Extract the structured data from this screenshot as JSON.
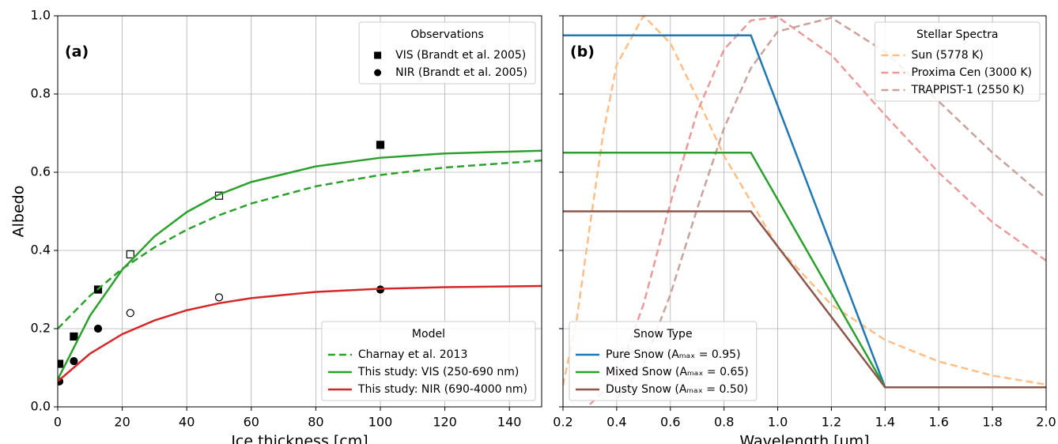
{
  "chart_data": [
    {
      "type": "line",
      "annotation": "(a)",
      "xlabel": "Ice thickness [cm]",
      "ylabel": "Albedo",
      "xlim": [
        0,
        150
      ],
      "ylim": [
        0,
        1
      ],
      "xticks": [
        0,
        20,
        40,
        60,
        80,
        100,
        120,
        140
      ],
      "yticks": [
        {
          "value": 0,
          "label": "0.0"
        },
        0.2,
        0.4,
        0.6,
        0.8,
        {
          "value": 1,
          "label": "1.0"
        }
      ],
      "grid": true,
      "legends": [
        {
          "title": "Observations",
          "loc": "upper right",
          "series": [
            {
              "name": "VIS (Brandt et al. 2005)",
              "type": "scatter",
              "marker": "square",
              "color": "#000000",
              "x": [
                0.5,
                5,
                12.5,
                22.5,
                50,
                100
              ],
              "values": [
                0.11,
                0.18,
                0.3,
                0.39,
                0.54,
                0.67
              ],
              "filled": [
                true,
                true,
                true,
                false,
                false,
                true
              ]
            },
            {
              "name": "NIR (Brandt et al. 2005)",
              "type": "scatter",
              "marker": "circle",
              "color": "#000000",
              "x": [
                0.5,
                5,
                12.5,
                22.5,
                50,
                100
              ],
              "values": [
                0.065,
                0.117,
                0.2,
                0.24,
                0.28,
                0.3
              ],
              "filled": [
                true,
                true,
                true,
                false,
                false,
                true
              ]
            }
          ]
        },
        {
          "title": "Model",
          "loc": "lower right",
          "series": [
            {
              "name": "Charnay et al. 2013",
              "type": "line",
              "linestyle": "dashed",
              "color": "#2ca02c",
              "x": [
                0,
                10,
                20,
                30,
                40,
                50,
                60,
                80,
                100,
                120,
                150
              ],
              "values": [
                0.2,
                0.284,
                0.353,
                0.408,
                0.453,
                0.49,
                0.52,
                0.564,
                0.593,
                0.612,
                0.63
              ]
            },
            {
              "name": "This study: VIS (250-690 nm)",
              "type": "line",
              "linestyle": "solid",
              "color": "#2ca02c",
              "x": [
                0,
                10,
                20,
                30,
                40,
                50,
                60,
                80,
                100,
                120,
                150
              ],
              "values": [
                0.07,
                0.233,
                0.351,
                0.436,
                0.498,
                0.543,
                0.575,
                0.615,
                0.637,
                0.648,
                0.655
              ]
            },
            {
              "name": "This study: NIR (690-4000 nm)",
              "type": "line",
              "linestyle": "solid",
              "color": "#d62728",
              "x": [
                0,
                10,
                20,
                30,
                40,
                50,
                60,
                80,
                100,
                120,
                150
              ],
              "values": [
                0.065,
                0.136,
                0.186,
                0.221,
                0.247,
                0.265,
                0.278,
                0.294,
                0.302,
                0.306,
                0.309
              ]
            }
          ]
        }
      ]
    },
    {
      "type": "line",
      "annotation": "(b)",
      "xlabel": "Wavelength [μm]",
      "sharey": true,
      "xlim": [
        0.2,
        2.0
      ],
      "ylim": [
        0,
        1
      ],
      "xticks": [
        0.2,
        0.4,
        0.6,
        0.8,
        {
          "value": 1,
          "label": "1.0"
        },
        1.2,
        1.4,
        1.6,
        1.8,
        {
          "value": 2,
          "label": "2.0"
        }
      ],
      "grid": true,
      "legends": [
        {
          "title": "Stellar Spectra",
          "loc": "upper right",
          "series": [
            {
              "name": "Sun (5778 K)",
              "type": "line",
              "linestyle": "dashed",
              "color": "#ffbe86",
              "x": [
                0.2,
                0.25,
                0.3,
                0.35,
                0.4,
                0.5,
                0.6,
                0.7,
                0.8,
                1.0,
                1.2,
                1.4,
                1.6,
                1.8,
                2.0
              ],
              "values": [
                0.055,
                0.218,
                0.462,
                0.7,
                0.875,
                1.0,
                0.93,
                0.79,
                0.642,
                0.409,
                0.261,
                0.171,
                0.116,
                0.08,
                0.057
              ]
            },
            {
              "name": "Proxima Cen (3000 K)",
              "type": "line",
              "linestyle": "dashed",
              "color": "#eb9a9a",
              "x": [
                0.3,
                0.4,
                0.5,
                0.6,
                0.7,
                0.8,
                0.9,
                1.0,
                1.2,
                1.4,
                1.6,
                1.8,
                2.0
              ],
              "values": [
                0.006,
                0.073,
                0.262,
                0.521,
                0.754,
                0.914,
                0.988,
                0.997,
                0.9,
                0.746,
                0.599,
                0.472,
                0.374
              ]
            },
            {
              "name": "TRAPPIST-1 (2550 K)",
              "type": "line",
              "linestyle": "dashed",
              "color": "#c9a29c",
              "x": [
                0.4,
                0.5,
                0.6,
                0.7,
                0.8,
                0.9,
                1.0,
                1.2,
                1.4,
                1.6,
                1.8,
                2.0
              ],
              "values": [
                0.02,
                0.108,
                0.287,
                0.507,
                0.713,
                0.866,
                0.96,
                0.995,
                0.908,
                0.781,
                0.65,
                0.533
              ]
            }
          ]
        },
        {
          "title": "Snow Type",
          "loc": "lower left",
          "series": [
            {
              "name": "Pure Snow (Aₘₐₓ = 0.95)",
              "type": "line",
              "linestyle": "solid",
              "color": "#1f77b4",
              "x": [
                0.2,
                0.9,
                1.4,
                2.0
              ],
              "values": [
                0.95,
                0.95,
                0.05,
                0.05
              ]
            },
            {
              "name": "Mixed Snow (Aₘₐₓ = 0.65)",
              "type": "line",
              "linestyle": "solid",
              "color": "#2ca02c",
              "x": [
                0.2,
                0.9,
                1.4,
                2.0
              ],
              "values": [
                0.65,
                0.65,
                0.05,
                0.05
              ]
            },
            {
              "name": "Dusty Snow (Aₘₐₓ = 0.50)",
              "type": "line",
              "linestyle": "solid",
              "color": "#8c564b",
              "x": [
                0.2,
                0.9,
                1.4,
                2.0
              ],
              "values": [
                0.5,
                0.5,
                0.05,
                0.05
              ]
            }
          ]
        }
      ]
    }
  ]
}
